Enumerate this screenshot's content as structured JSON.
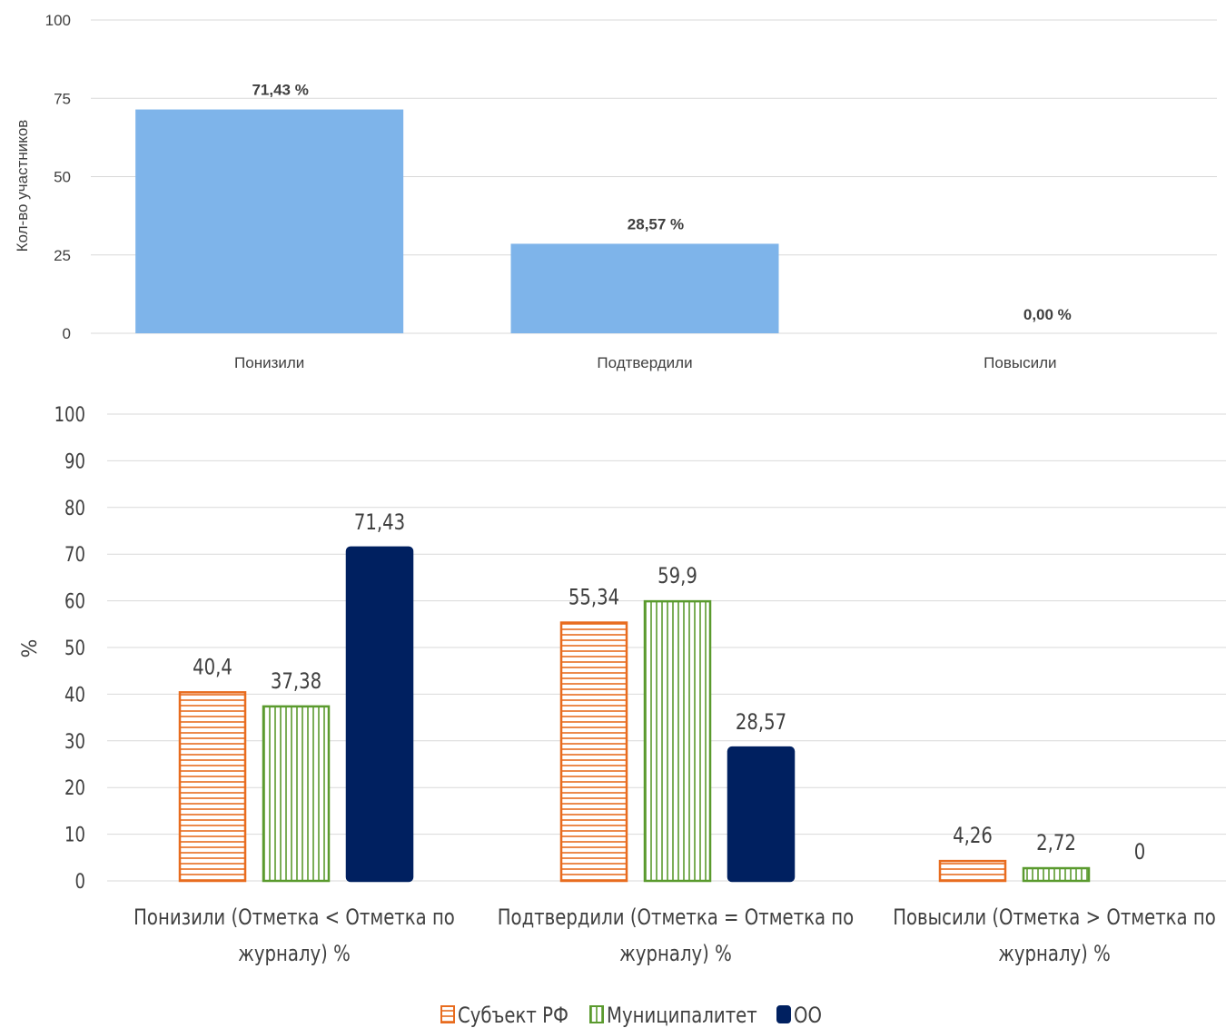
{
  "chart_data": [
    {
      "type": "bar",
      "categories": [
        "Понизили",
        "Подтвердили",
        "Повысили"
      ],
      "values": [
        71.43,
        28.57,
        0
      ],
      "data_labels": [
        "71,43 %",
        "28,57 %",
        "0,00 %"
      ],
      "ylabel": "Кол-во участников",
      "ylim": [
        0,
        100
      ],
      "yticks": [
        "0",
        "25",
        "50",
        "75",
        "100"
      ],
      "grid": true,
      "colors": [
        "#7EB4EA"
      ]
    },
    {
      "type": "bar",
      "categories": [
        [
          "Понизили (Отметка < Отметка по",
          "журналу) %"
        ],
        [
          "Подтвердили (Отметка = Отметка по",
          "журналу) %"
        ],
        [
          "Повысили (Отметка > Отметка по",
          "журналу) %"
        ]
      ],
      "series": [
        {
          "name": "Субъект РФ",
          "values": [
            40.4,
            55.34,
            4.26
          ],
          "labels": [
            "40,4",
            "55,34",
            "4,26"
          ],
          "color": "#E86C1F",
          "pattern": "horizontal"
        },
        {
          "name": "Муниципалитет",
          "values": [
            37.38,
            59.9,
            2.72
          ],
          "labels": [
            "37,38",
            "59,9",
            "2,72"
          ],
          "color": "#5A9A2E",
          "pattern": "vertical"
        },
        {
          "name": "ОО",
          "values": [
            71.43,
            28.57,
            0
          ],
          "labels": [
            "71,43",
            "28,57",
            "0"
          ],
          "color": "#002060",
          "pattern": "solid"
        }
      ],
      "ylabel": "%",
      "ylim": [
        0,
        100
      ],
      "yticks": [
        "0",
        "10",
        "20",
        "30",
        "40",
        "50",
        "60",
        "70",
        "80",
        "90",
        "100"
      ],
      "grid": true,
      "legend": "bottom"
    }
  ]
}
